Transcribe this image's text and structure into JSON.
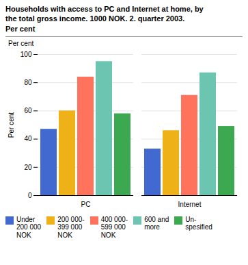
{
  "chart_data": {
    "type": "bar",
    "title": "Households with access to PC and Internet at home, by\nthe total gross income. 1000 NOK. 2. quarter 2003.\nPer cent",
    "ylabel": "Per cent",
    "annotations": [
      "Per cent"
    ],
    "categories": [
      "PC",
      "Internet"
    ],
    "series": [
      {
        "name": "Under\n200 000\nNOK",
        "values": [
          47,
          33
        ]
      },
      {
        "name": "200 000-\n399 000\nNOK",
        "values": [
          60,
          46
        ]
      },
      {
        "name": "400 000-\n599 000\nNOK",
        "values": [
          84,
          71
        ]
      },
      {
        "name": "600 and\nmore",
        "values": [
          95,
          87
        ]
      },
      {
        "name": "Un-\nspesified",
        "values": [
          58,
          49
        ]
      }
    ],
    "ylim": [
      0,
      100
    ],
    "yticks": [
      0,
      20,
      40,
      60,
      80,
      100
    ],
    "grid": true,
    "legend": "lower left"
  }
}
